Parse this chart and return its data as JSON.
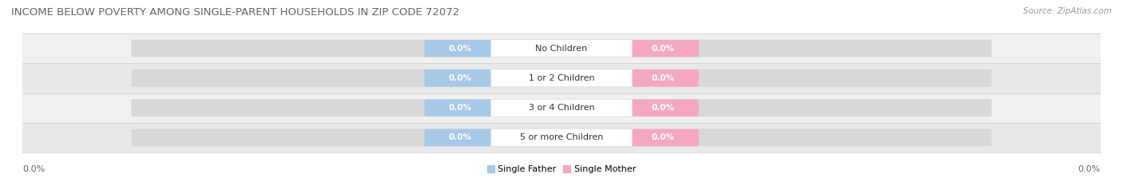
{
  "title": "INCOME BELOW POVERTY AMONG SINGLE-PARENT HOUSEHOLDS IN ZIP CODE 72072",
  "source": "Source: ZipAtlas.com",
  "categories": [
    "No Children",
    "1 or 2 Children",
    "3 or 4 Children",
    "5 or more Children"
  ],
  "single_father_values": [
    0.0,
    0.0,
    0.0,
    0.0
  ],
  "single_mother_values": [
    0.0,
    0.0,
    0.0,
    0.0
  ],
  "father_color": "#a8c8e8",
  "mother_color": "#f4a8c0",
  "row_bg_colors": [
    "#f0f0f0",
    "#e8e8e8"
  ],
  "bar_track_color": "#d0d0d0",
  "title_fontsize": 9.5,
  "source_fontsize": 7.5,
  "chip_label_fontsize": 7.5,
  "cat_label_fontsize": 8,
  "axis_label_fontsize": 8,
  "legend_fontsize": 8,
  "x_left_label": "0.0%",
  "x_right_label": "0.0%",
  "legend_father": "Single Father",
  "legend_mother": "Single Mother"
}
